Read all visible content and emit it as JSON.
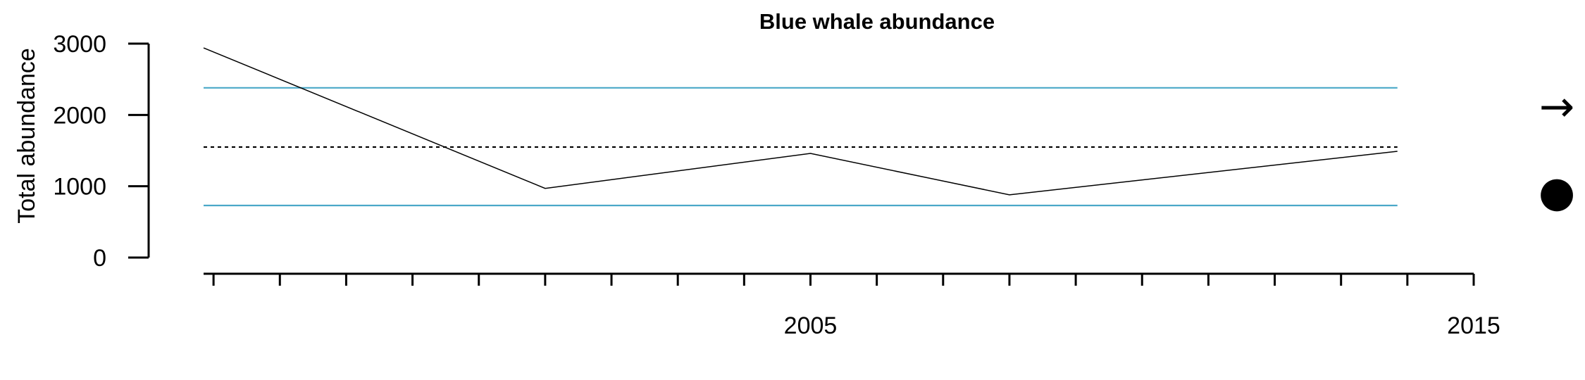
{
  "chart_data": {
    "type": "line",
    "title": "Blue whale abundance",
    "xlabel": "",
    "ylabel": "Total abundance",
    "xlim": [
      1995.85,
      2015
    ],
    "ylim": [
      0,
      3000
    ],
    "x_ticks": [
      2005,
      2015
    ],
    "x_minor_ticks": [
      1996,
      1997,
      1998,
      1999,
      2000,
      2001,
      2002,
      2003,
      2004,
      2005,
      2006,
      2007,
      2008,
      2009,
      2010,
      2011,
      2012,
      2013,
      2014,
      2015
    ],
    "y_ticks": [
      0,
      1000,
      2000,
      3000
    ],
    "series": [
      {
        "x": [
          1995.85,
          2001,
          2005,
          2008,
          2013.85
        ],
        "values": [
          2940,
          970,
          1460,
          880,
          1490
        ],
        "color": "#000000"
      }
    ],
    "reference_lines": [
      {
        "y": 2380,
        "style": "solid",
        "color": "#4aa8c8",
        "x_range": [
          1995.85,
          2013.85
        ]
      },
      {
        "y": 1550,
        "style": "dotted",
        "color": "#000000",
        "x_range": [
          1995.85,
          2013.85
        ]
      },
      {
        "y": 730,
        "style": "solid",
        "color": "#4aa8c8",
        "x_range": [
          1995.85,
          2013.85
        ]
      }
    ],
    "grid": false,
    "legend": "none",
    "trend_symbol": "→",
    "status_symbol": "●"
  }
}
